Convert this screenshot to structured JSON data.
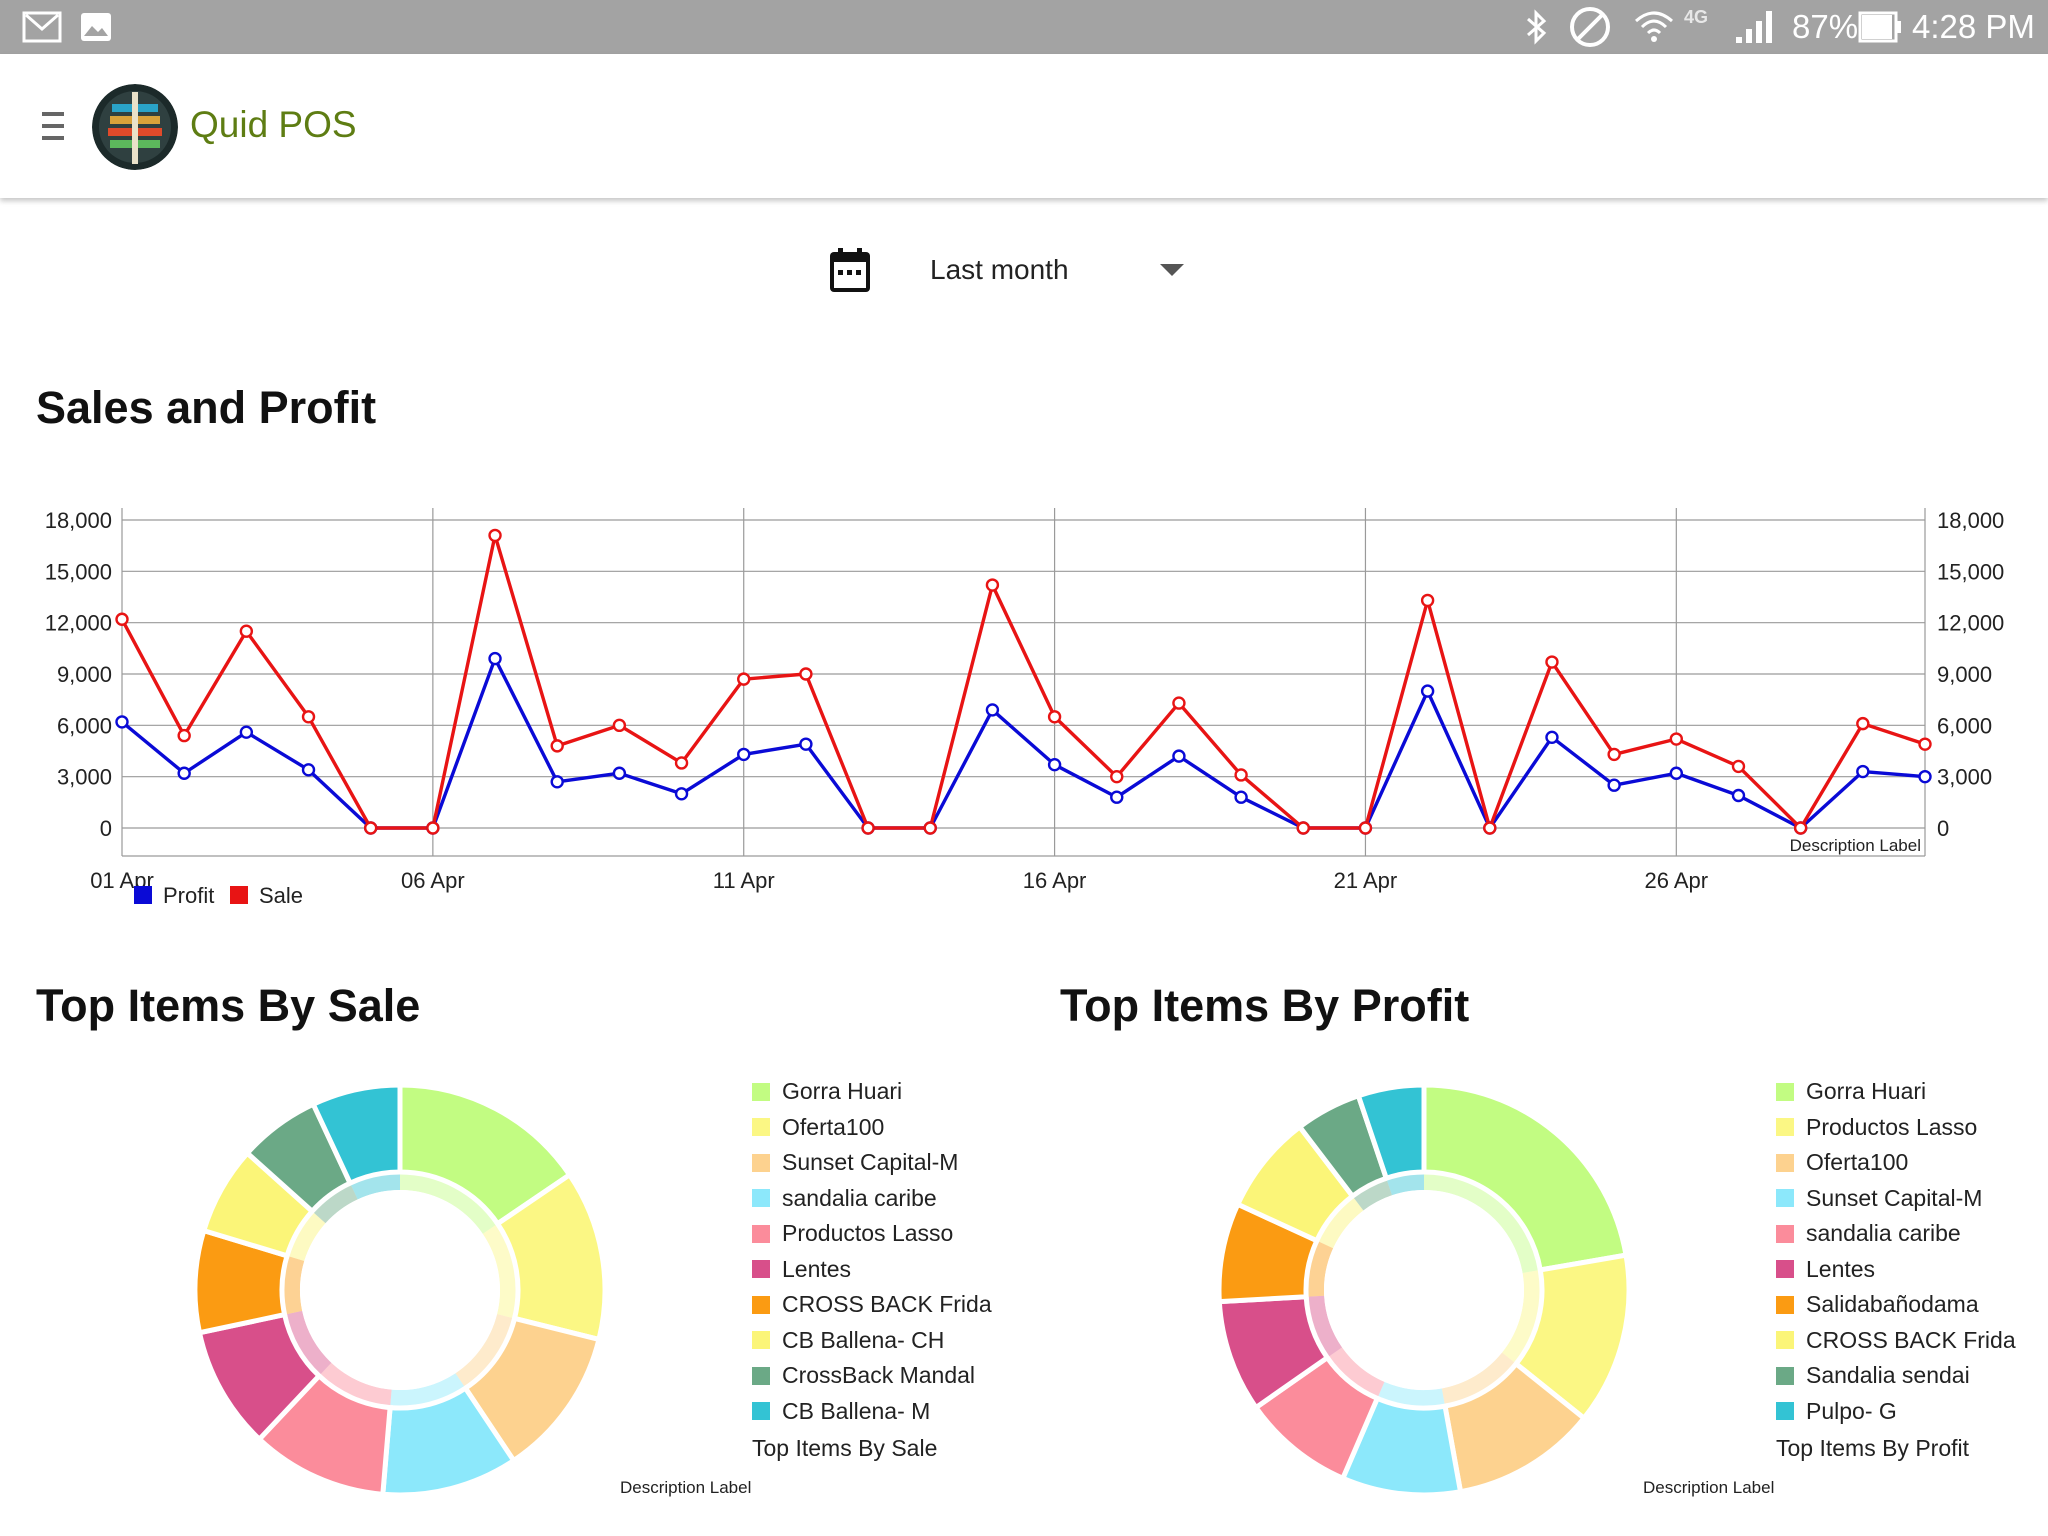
{
  "status_bar": {
    "battery": "87%",
    "time": "4:28 PM",
    "network": "4G"
  },
  "app": {
    "title": "Quid POS"
  },
  "date_filter": {
    "selected": "Last month"
  },
  "sections": {
    "sales_profit_title": "Sales and Profit",
    "top_sale_title": "Top Items By Sale",
    "top_profit_title": "Top Items By Profit"
  },
  "colors": {
    "profit": "#0a0ad6",
    "sale": "#e81414",
    "title_green": "#5e7d13"
  },
  "chart_data": [
    {
      "type": "line",
      "description_label": "Description Label",
      "x_tick_labels": [
        "01 Apr",
        "06 Apr",
        "11 Apr",
        "16 Apr",
        "21 Apr",
        "26 Apr"
      ],
      "x": [
        1,
        2,
        3,
        4,
        5,
        6,
        7,
        8,
        9,
        10,
        11,
        12,
        13,
        14,
        15,
        16,
        17,
        18,
        19,
        20,
        21,
        22,
        23,
        24,
        25,
        26,
        27,
        28,
        29,
        30
      ],
      "ylim": [
        0,
        18000
      ],
      "y_ticks": [
        "0",
        "3,000",
        "6,000",
        "9,000",
        "12,000",
        "15,000",
        "18,000"
      ],
      "y_tick_values": [
        0,
        3000,
        6000,
        9000,
        12000,
        15000,
        18000
      ],
      "grid": true,
      "legend_position": "bottom-left",
      "series": [
        {
          "name": "Profit",
          "color": "#0a0ad6",
          "values": [
            6200,
            3200,
            5600,
            3400,
            0,
            0,
            9900,
            2700,
            3200,
            2000,
            4300,
            4900,
            0,
            0,
            6900,
            3700,
            1800,
            4200,
            1800,
            0,
            0,
            8000,
            0,
            5300,
            2500,
            3200,
            1900,
            0,
            3300,
            3000
          ]
        },
        {
          "name": "Sale",
          "color": "#e81414",
          "values": [
            12200,
            5400,
            11500,
            6500,
            0,
            0,
            17100,
            4800,
            6000,
            3800,
            8700,
            9000,
            0,
            0,
            14200,
            6500,
            3000,
            7300,
            3100,
            0,
            0,
            13300,
            0,
            9700,
            4300,
            5200,
            3600,
            0,
            6100,
            4900
          ]
        }
      ]
    },
    {
      "type": "pie",
      "title": "Top Items By Sale",
      "description_label": "Description Label",
      "labels": [
        "Gorra Huari",
        "Oferta100",
        "Sunset Capital-M",
        "sandalia caribe",
        "Productos Lasso",
        "Lentes",
        "CROSS BACK Frida",
        "CB Ballena- CH",
        "CrossBack Mandal",
        "CB Ballena- M"
      ],
      "values": [
        14.5,
        12.5,
        11.0,
        10.0,
        10.0,
        9.0,
        7.5,
        6.5,
        6.0,
        6.5
      ],
      "colors": [
        "#c2fc82",
        "#fbf784",
        "#fdd28f",
        "#8ce8fb",
        "#fb8c9b",
        "#d84f8a",
        "#fb9b12",
        "#fbf578",
        "#6ba986",
        "#33c3d4"
      ]
    },
    {
      "type": "pie",
      "title": "Top Items By Profit",
      "description_label": "Description Label",
      "labels": [
        "Gorra Huari",
        "Productos Lasso",
        "Oferta100",
        "Sunset Capital-M",
        "sandalia caribe",
        "Lentes",
        "Salidabañodama",
        "CROSS BACK Frida",
        "Sandalia sendai",
        "Pulpo- G"
      ],
      "values": [
        21.5,
        13.0,
        11.0,
        9.0,
        8.5,
        8.5,
        7.5,
        7.5,
        5.0,
        5.0
      ],
      "colors": [
        "#c2fc82",
        "#fbf784",
        "#fdd28f",
        "#8ce8fb",
        "#fb8c9b",
        "#d84f8a",
        "#fb9b12",
        "#fbf578",
        "#6ba986",
        "#33c3d4"
      ]
    }
  ]
}
